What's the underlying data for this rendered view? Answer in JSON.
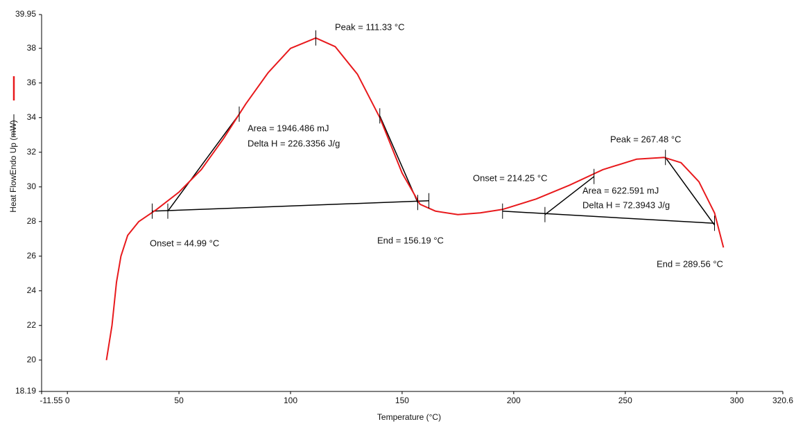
{
  "chart_data": {
    "type": "line",
    "xlabel": "Temperature (°C)",
    "ylabel": "Heat FlowEndo Up (mW)",
    "xlim": [
      -11.55,
      320.6
    ],
    "ylim": [
      18.19,
      39.95
    ],
    "xticks": [
      -11.55,
      0,
      50,
      100,
      150,
      200,
      250,
      300,
      320.6
    ],
    "yticks": [
      18.19,
      20,
      22,
      24,
      26,
      28,
      30,
      32,
      34,
      36,
      38,
      39.95
    ],
    "series": [
      {
        "color": "#e8191c",
        "x": [
          17.5,
          20,
          22,
          24,
          27,
          32,
          40,
          50,
          60,
          70,
          80,
          90,
          100,
          111.33,
          120,
          130,
          140,
          150,
          158,
          165,
          175,
          185,
          195,
          210,
          225,
          240,
          255,
          267.48,
          275,
          283,
          290,
          294
        ],
        "values": [
          20,
          22,
          24.5,
          26,
          27.2,
          28,
          28.7,
          29.7,
          31,
          32.8,
          34.8,
          36.6,
          38,
          38.6,
          38.1,
          36.5,
          34,
          30.8,
          29,
          28.6,
          28.4,
          28.5,
          28.7,
          29.3,
          30.1,
          31,
          31.6,
          31.7,
          31.4,
          30.3,
          28.5,
          26.5
        ]
      }
    ],
    "construction_lines": [
      {
        "color": "#000000",
        "x": [
          38,
          162
        ],
        "values": [
          28.6,
          29.2
        ]
      },
      {
        "color": "#000000",
        "x": [
          45,
          77
        ],
        "values": [
          28.6,
          34.2
        ]
      },
      {
        "color": "#000000",
        "x": [
          140,
          157
        ],
        "values": [
          34.1,
          29.1
        ]
      },
      {
        "color": "#000000",
        "x": [
          195,
          290
        ],
        "values": [
          28.6,
          27.9
        ]
      },
      {
        "color": "#000000",
        "x": [
          214,
          236
        ],
        "values": [
          28.4,
          30.6
        ]
      },
      {
        "color": "#000000",
        "x": [
          268,
          290
        ],
        "values": [
          31.7,
          27.8
        ]
      }
    ],
    "markers": {
      "x": [
        38,
        45,
        77,
        111.33,
        140,
        157,
        162,
        195,
        214,
        236,
        268,
        290
      ],
      "values": [
        28.6,
        28.6,
        34.2,
        38.6,
        34.1,
        29.1,
        29.2,
        28.6,
        28.4,
        30.6,
        31.7,
        27.9
      ]
    },
    "annotations": [
      "Peak = 111.33 °C",
      "Area = 1946.486 mJ",
      "Delta H = 226.3356 J/g",
      "Onset = 44.99 °C",
      "End = 156.19 °C",
      "Onset = 214.25 °C",
      "Peak = 267.48 °C",
      "Area = 622.591 mJ",
      "Delta H = 72.3943 J/g",
      "End = 289.56 °C"
    ]
  }
}
